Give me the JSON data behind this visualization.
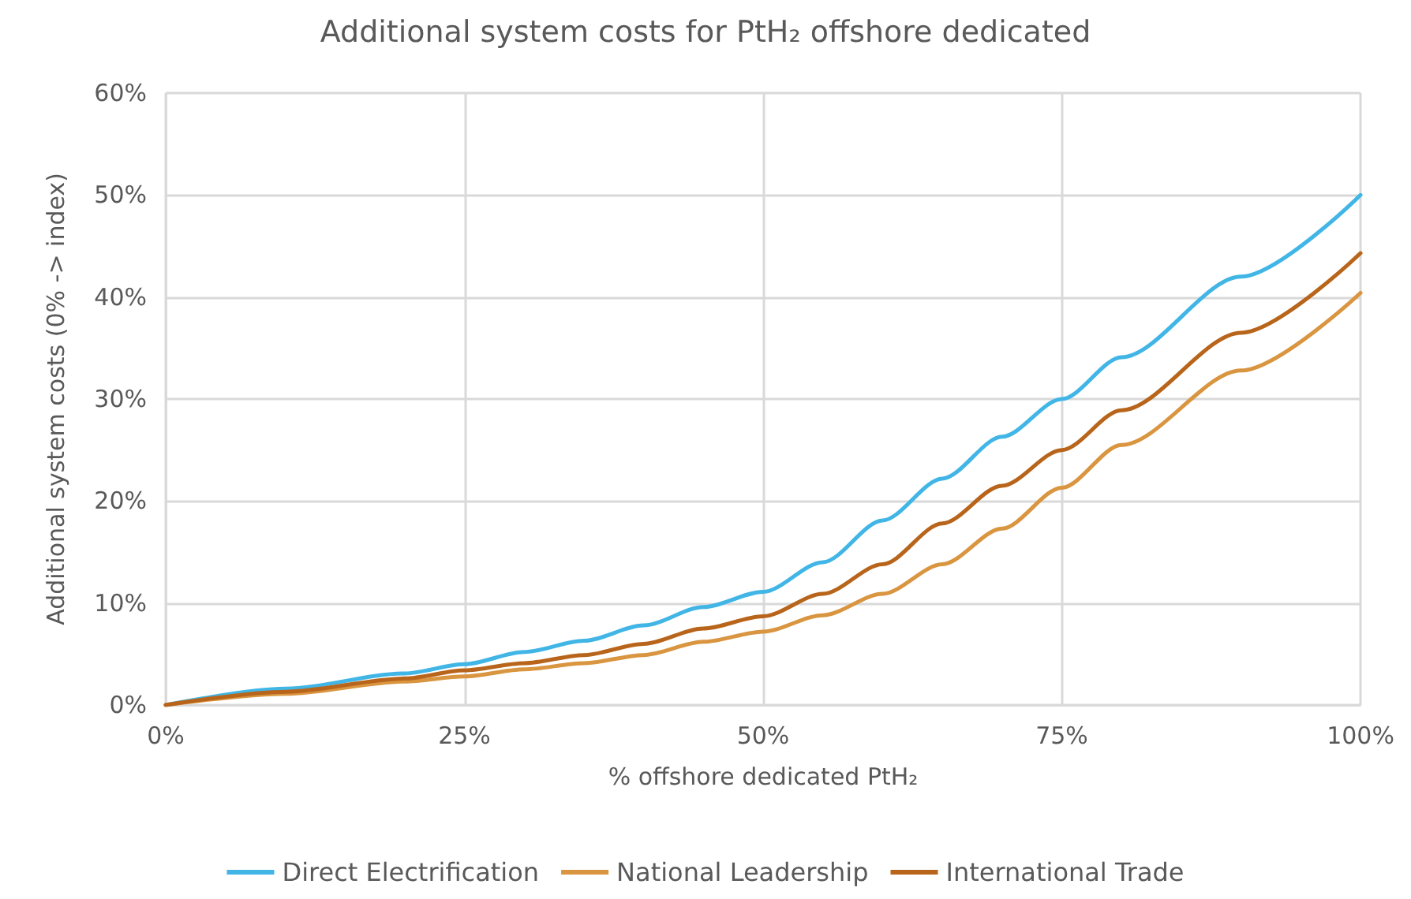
{
  "chart_data": {
    "type": "line",
    "title": "Additional system costs for PtH₂ offshore dedicated",
    "xlabel": "% offshore dedicated PtH₂",
    "ylabel": "Additional system costs (0% -> index)",
    "x": [
      0,
      10,
      20,
      25,
      30,
      35,
      40,
      45,
      50,
      55,
      60,
      65,
      70,
      75,
      80,
      90,
      100
    ],
    "series": [
      {
        "name": "Direct Electrification",
        "color": "#41b6e6",
        "values": [
          0,
          1.6,
          3.1,
          4.0,
          5.2,
          6.3,
          7.8,
          9.6,
          11.1,
          14.0,
          18.1,
          22.2,
          26.3,
          30,
          34.1,
          42.0,
          50
        ]
      },
      {
        "name": "National Leadership",
        "color": "#d9953f",
        "values": [
          0,
          1.1,
          2.3,
          2.8,
          3.5,
          4.1,
          4.9,
          6.2,
          7.2,
          8.8,
          10.9,
          13.8,
          17.3,
          21.3,
          25.5,
          32.8,
          40.4
        ]
      },
      {
        "name": "International Trade",
        "color": "#b8651b",
        "values": [
          0,
          1.3,
          2.6,
          3.4,
          4.1,
          4.9,
          6.0,
          7.5,
          8.7,
          10.9,
          13.8,
          17.8,
          21.5,
          25.0,
          28.9,
          36.5,
          44.3
        ]
      }
    ],
    "xlim": [
      0,
      100
    ],
    "xticks": [
      {
        "value": 0,
        "label": "0%"
      },
      {
        "value": 25,
        "label": "25%"
      },
      {
        "value": 50,
        "label": "50%"
      },
      {
        "value": 75,
        "label": "75%"
      },
      {
        "value": 100,
        "label": "100%"
      }
    ],
    "ylim": [
      0,
      60
    ],
    "yticks": [
      {
        "value": 0,
        "label": "0%"
      },
      {
        "value": 10,
        "label": "10%"
      },
      {
        "value": 20,
        "label": "20%"
      },
      {
        "value": 30,
        "label": "30%"
      },
      {
        "value": 40,
        "label": "40%"
      },
      {
        "value": 50,
        "label": "50%"
      },
      {
        "value": 60,
        "label": "60%"
      }
    ],
    "grid": true,
    "legend": "bottom",
    "marker": "none",
    "line_style": "solid"
  }
}
